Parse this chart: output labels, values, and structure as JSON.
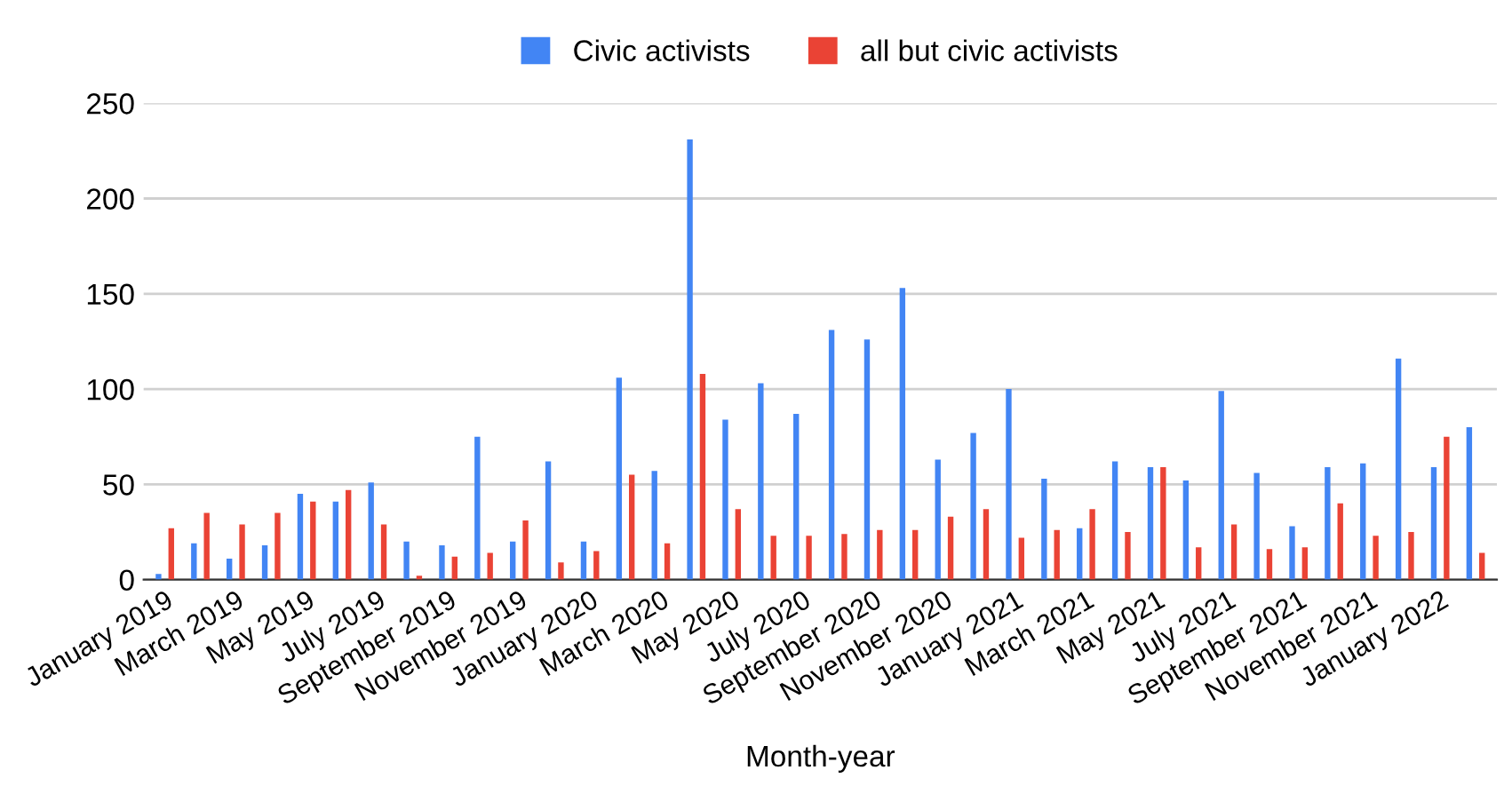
{
  "chart_data": {
    "type": "bar",
    "xlabel": "Month-year",
    "categories": [
      "January 2019",
      null,
      "March 2019",
      null,
      "May 2019",
      null,
      "July 2019",
      null,
      "September 2019",
      null,
      "November 2019",
      null,
      "January 2020",
      null,
      "March 2020",
      null,
      "May 2020",
      null,
      "July 2020",
      null,
      "September 2020",
      null,
      "November 2020",
      null,
      "January 2021",
      null,
      "March 2021",
      null,
      "May 2021",
      null,
      "July 2021",
      null,
      "September 2021",
      null,
      "November 2021",
      null,
      "January 2022",
      null
    ],
    "series": [
      {
        "name": "Civic activists",
        "color": "#4285f4",
        "values": [
          3,
          19,
          11,
          18,
          45,
          41,
          51,
          20,
          18,
          75,
          20,
          62,
          20,
          106,
          57,
          231,
          84,
          103,
          87,
          131,
          126,
          153,
          63,
          77,
          100,
          53,
          27,
          62,
          59,
          52,
          99,
          56,
          28,
          59,
          61,
          116,
          59,
          80
        ]
      },
      {
        "name": "all but civic activists",
        "color": "#ea4335",
        "values": [
          27,
          35,
          29,
          35,
          41,
          47,
          29,
          2,
          12,
          14,
          31,
          9,
          15,
          55,
          19,
          108,
          37,
          23,
          23,
          24,
          26,
          26,
          33,
          37,
          22,
          26,
          37,
          25,
          59,
          17,
          29,
          16,
          17,
          40,
          23,
          25,
          75,
          14
        ]
      }
    ],
    "ylim": [
      0,
      250
    ],
    "yticks": [
      0,
      50,
      100,
      150,
      200,
      250
    ],
    "grid": "y",
    "legend": "top"
  }
}
